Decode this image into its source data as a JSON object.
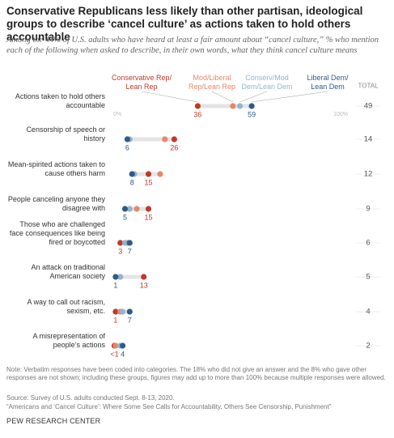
{
  "chart_data": {
    "type": "dot",
    "title": "Conservative Republicans less likely than other partisan, ideological groups to describe ‘cancel culture’ as actions taken to hold others accountable",
    "subtitle": "Among the 44% of U.S. adults who have heard at least a fair amount about “cancel culture,” % who mention each of the following when asked to describe, in their own words, what they think cancel culture means",
    "categories": [
      "Actions taken to hold others accountable",
      "Censorship of speech or history",
      "Mean-spirited actions taken to cause others harm",
      "People canceling anyone they disagree with",
      "Those who are challenged face consequences like being fired or boycotted",
      "An attack on traditional American society",
      "A way to call out racism, sexism, etc.",
      "A misrepresentation of people’s actions"
    ],
    "series": [
      {
        "name": "Conservative Rep/ Lean Rep",
        "color": "#c0392b",
        "values": [
          36,
          26,
          15,
          15,
          3,
          13,
          1,
          0.5
        ],
        "value_labels": [
          "36",
          "26",
          "15",
          "15",
          "3",
          "13",
          "1",
          "<1"
        ]
      },
      {
        "name": "Mod/Liberal Rep/Lean Rep",
        "color": "#e8866c",
        "values": [
          51,
          22,
          20,
          10,
          6,
          3,
          3,
          1
        ]
      },
      {
        "name": "Conserv/Mod Dem/Lean Dem",
        "color": "#93b5cf",
        "values": [
          54,
          7,
          9,
          7,
          5,
          3,
          4,
          3
        ]
      },
      {
        "name": "Liberal Dem/ Lean Dem",
        "color": "#2e5b88",
        "values": [
          59,
          6,
          8,
          5,
          7,
          1,
          7,
          4
        ],
        "value_labels": [
          "59",
          "6",
          "8",
          "5",
          "7",
          "1",
          "7",
          "4"
        ]
      }
    ],
    "total_label": "TOTAL",
    "totals": [
      49,
      14,
      12,
      9,
      6,
      5,
      4,
      2
    ],
    "xlim": [
      0,
      100
    ],
    "xticks": [
      {
        "value": 0,
        "label": "0%"
      },
      {
        "value": 100,
        "label": "100%"
      }
    ],
    "notes": [
      "Note: Verbatim responses have been coded into categories. The 18% who did not give an answer and the 8% who gave other responses are not shown; including these groups, figures may add up to more than 100% because multiple responses were allowed.",
      "Source: Survey of U.S. adults conducted Sept. 8-13, 2020.",
      "“Americans and ‘Cancel Culture’: Where Some See Calls for Accountability, Others See Censorship, Punishment”"
    ],
    "footer": "PEW RESEARCH CENTER"
  }
}
